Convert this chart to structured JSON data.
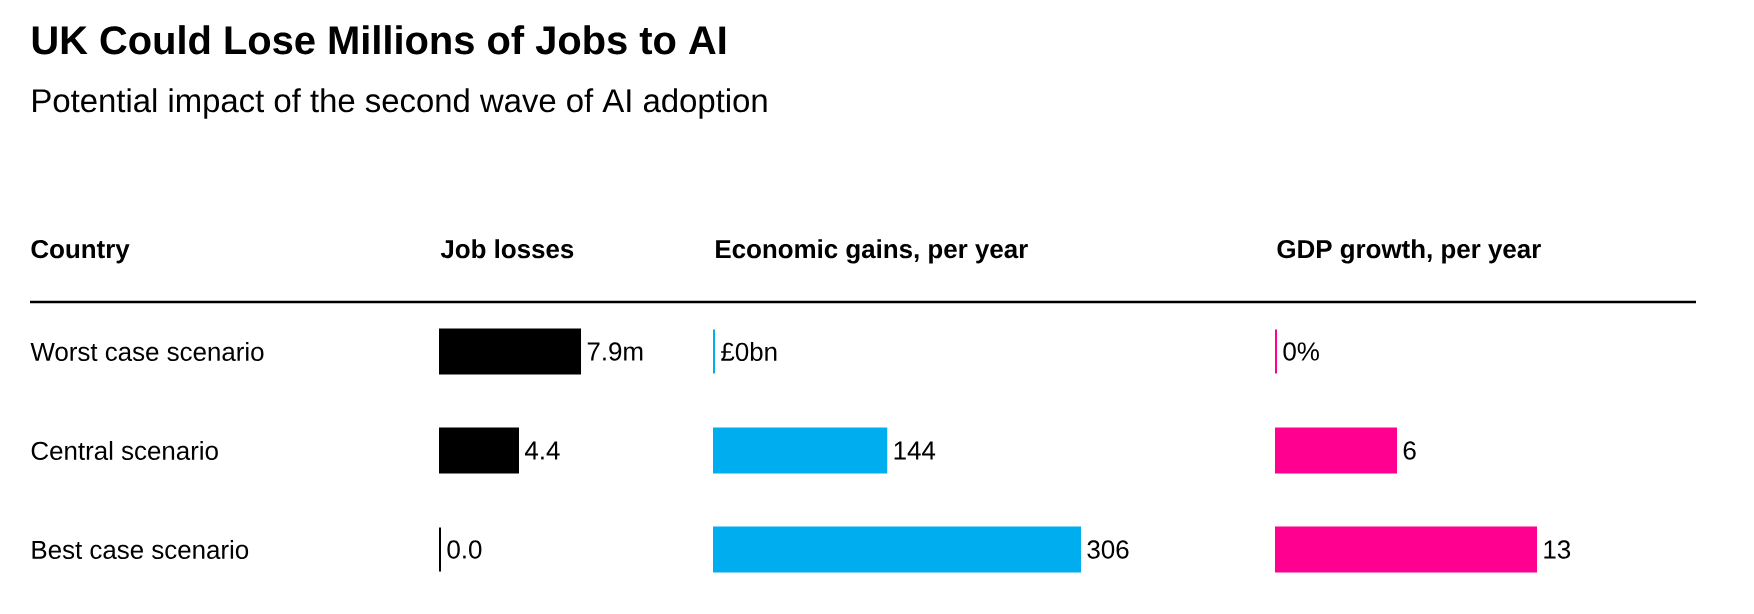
{
  "chart_data": [
    {
      "type": "bar",
      "orientation": "horizontal",
      "title": "UK Could Lose Millions of Jobs to AI",
      "subtitle": "Potential impact of the second wave of AI adoption",
      "ylabel": "Country",
      "xlabel": "Job losses",
      "categories": [
        "Worst case scenario",
        "Central scenario",
        "Best case scenario"
      ],
      "values": [
        7.9,
        4.4,
        0.0
      ],
      "value_labels": [
        "7.9m",
        "4.4",
        "0.0"
      ],
      "color": "#000000",
      "tick_labels": "y"
    },
    {
      "type": "bar",
      "orientation": "horizontal",
      "xlabel": "Economic gains, per year",
      "categories": [
        null,
        null,
        null
      ],
      "values": [
        0,
        144,
        306
      ],
      "value_labels": [
        "£0bn",
        "144",
        "306"
      ],
      "color": "#00aeef",
      "tick_labels": false
    },
    {
      "type": "bar",
      "orientation": "horizontal",
      "xlabel": "GDP growth, per year",
      "categories": [
        null,
        null,
        null
      ],
      "values": [
        0,
        6,
        13
      ],
      "value_labels": [
        "0%",
        "6",
        "13"
      ],
      "color": "#ff0090",
      "tick_labels": false
    }
  ]
}
